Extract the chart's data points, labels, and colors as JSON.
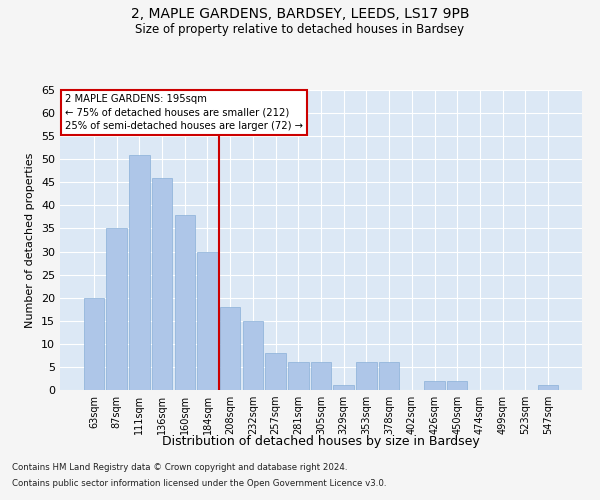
{
  "title1": "2, MAPLE GARDENS, BARDSEY, LEEDS, LS17 9PB",
  "title2": "Size of property relative to detached houses in Bardsey",
  "xlabel": "Distribution of detached houses by size in Bardsey",
  "ylabel": "Number of detached properties",
  "categories": [
    "63sqm",
    "87sqm",
    "111sqm",
    "136sqm",
    "160sqm",
    "184sqm",
    "208sqm",
    "232sqm",
    "257sqm",
    "281sqm",
    "305sqm",
    "329sqm",
    "353sqm",
    "378sqm",
    "402sqm",
    "426sqm",
    "450sqm",
    "474sqm",
    "499sqm",
    "523sqm",
    "547sqm"
  ],
  "values": [
    20,
    35,
    51,
    46,
    38,
    30,
    18,
    15,
    8,
    6,
    6,
    1,
    6,
    6,
    0,
    2,
    2,
    0,
    0,
    0,
    1
  ],
  "bar_color": "#aec6e8",
  "bar_edge_color": "#8ab0d8",
  "marker_line_color": "#cc0000",
  "marker_label": "2 MAPLE GARDENS: 195sqm",
  "annotation_line1": "← 75% of detached houses are smaller (212)",
  "annotation_line2": "25% of semi-detached houses are larger (72) →",
  "annotation_box_color": "#cc0000",
  "ylim": [
    0,
    65
  ],
  "yticks": [
    0,
    5,
    10,
    15,
    20,
    25,
    30,
    35,
    40,
    45,
    50,
    55,
    60,
    65
  ],
  "axes_bg_color": "#dce8f5",
  "grid_color": "#ffffff",
  "fig_bg_color": "#f5f5f5",
  "footer1": "Contains HM Land Registry data © Crown copyright and database right 2024.",
  "footer2": "Contains public sector information licensed under the Open Government Licence v3.0."
}
